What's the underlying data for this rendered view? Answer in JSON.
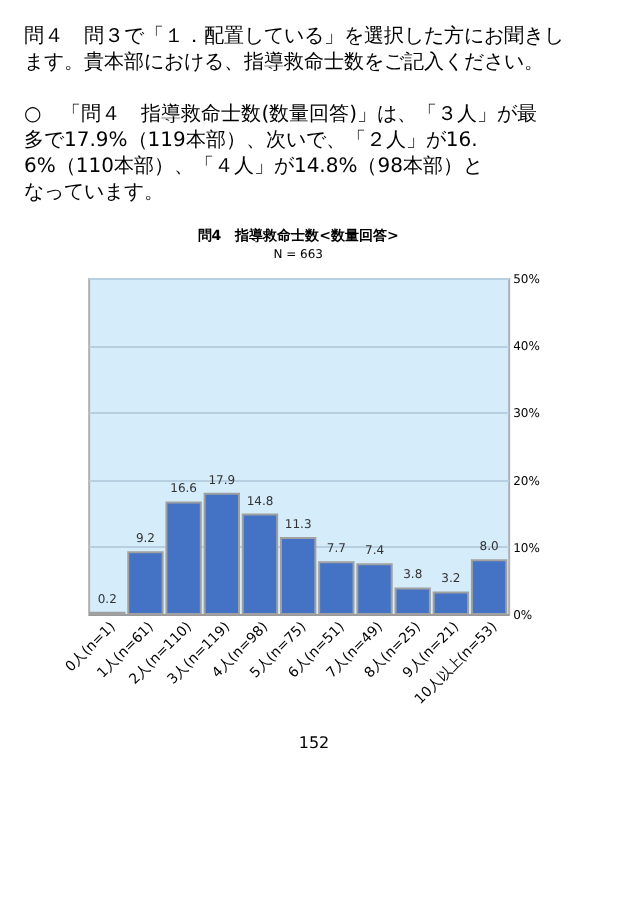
{
  "chart_data": {
    "type": "bar",
    "title": "問4　指導救命士数<数量回答>",
    "subtitle": "N = 663",
    "annotations": [
      "問４　問３で「１．配置している」を選択した方にお聞きします。貴本部における、指導救命士数をご記入ください。",
      "○　「問４　指導救命士数(数量回答)」は、「３人」が最多で17.9%（119本部）、次いで、「２人」が16.6%（110本部）、「４人」が14.8%（98本部）となっています。",
      "152"
    ],
    "categories": [
      "0人(n=1)",
      "1人(n=61)",
      "2人(n=110)",
      "3人(n=119)",
      "4人(n=98)",
      "5人(n=75)",
      "6人(n=51)",
      "7人(n=49)",
      "8人(n=25)",
      "9人(n=21)",
      "10人以上(n=53)"
    ],
    "values": [
      0.2,
      9.2,
      16.6,
      17.9,
      14.8,
      11.3,
      7.7,
      7.4,
      3.8,
      3.2,
      8.0
    ],
    "value_labels": [
      "0.2",
      "9.2",
      "16.6",
      "17.9",
      "14.8",
      "11.3",
      "7.7",
      "7.4",
      "3.8",
      "3.2",
      "8.0"
    ],
    "color": "#4472c4",
    "grid": "y",
    "ylim": [
      0,
      50
    ],
    "yticks": [
      {
        "value": 0,
        "label": "0%"
      },
      {
        "value": 10,
        "label": "10%"
      },
      {
        "value": 20,
        "label": "20%"
      },
      {
        "value": 30,
        "label": "30%"
      },
      {
        "value": 40,
        "label": "40%"
      },
      {
        "value": 50,
        "label": "50%"
      }
    ]
  }
}
